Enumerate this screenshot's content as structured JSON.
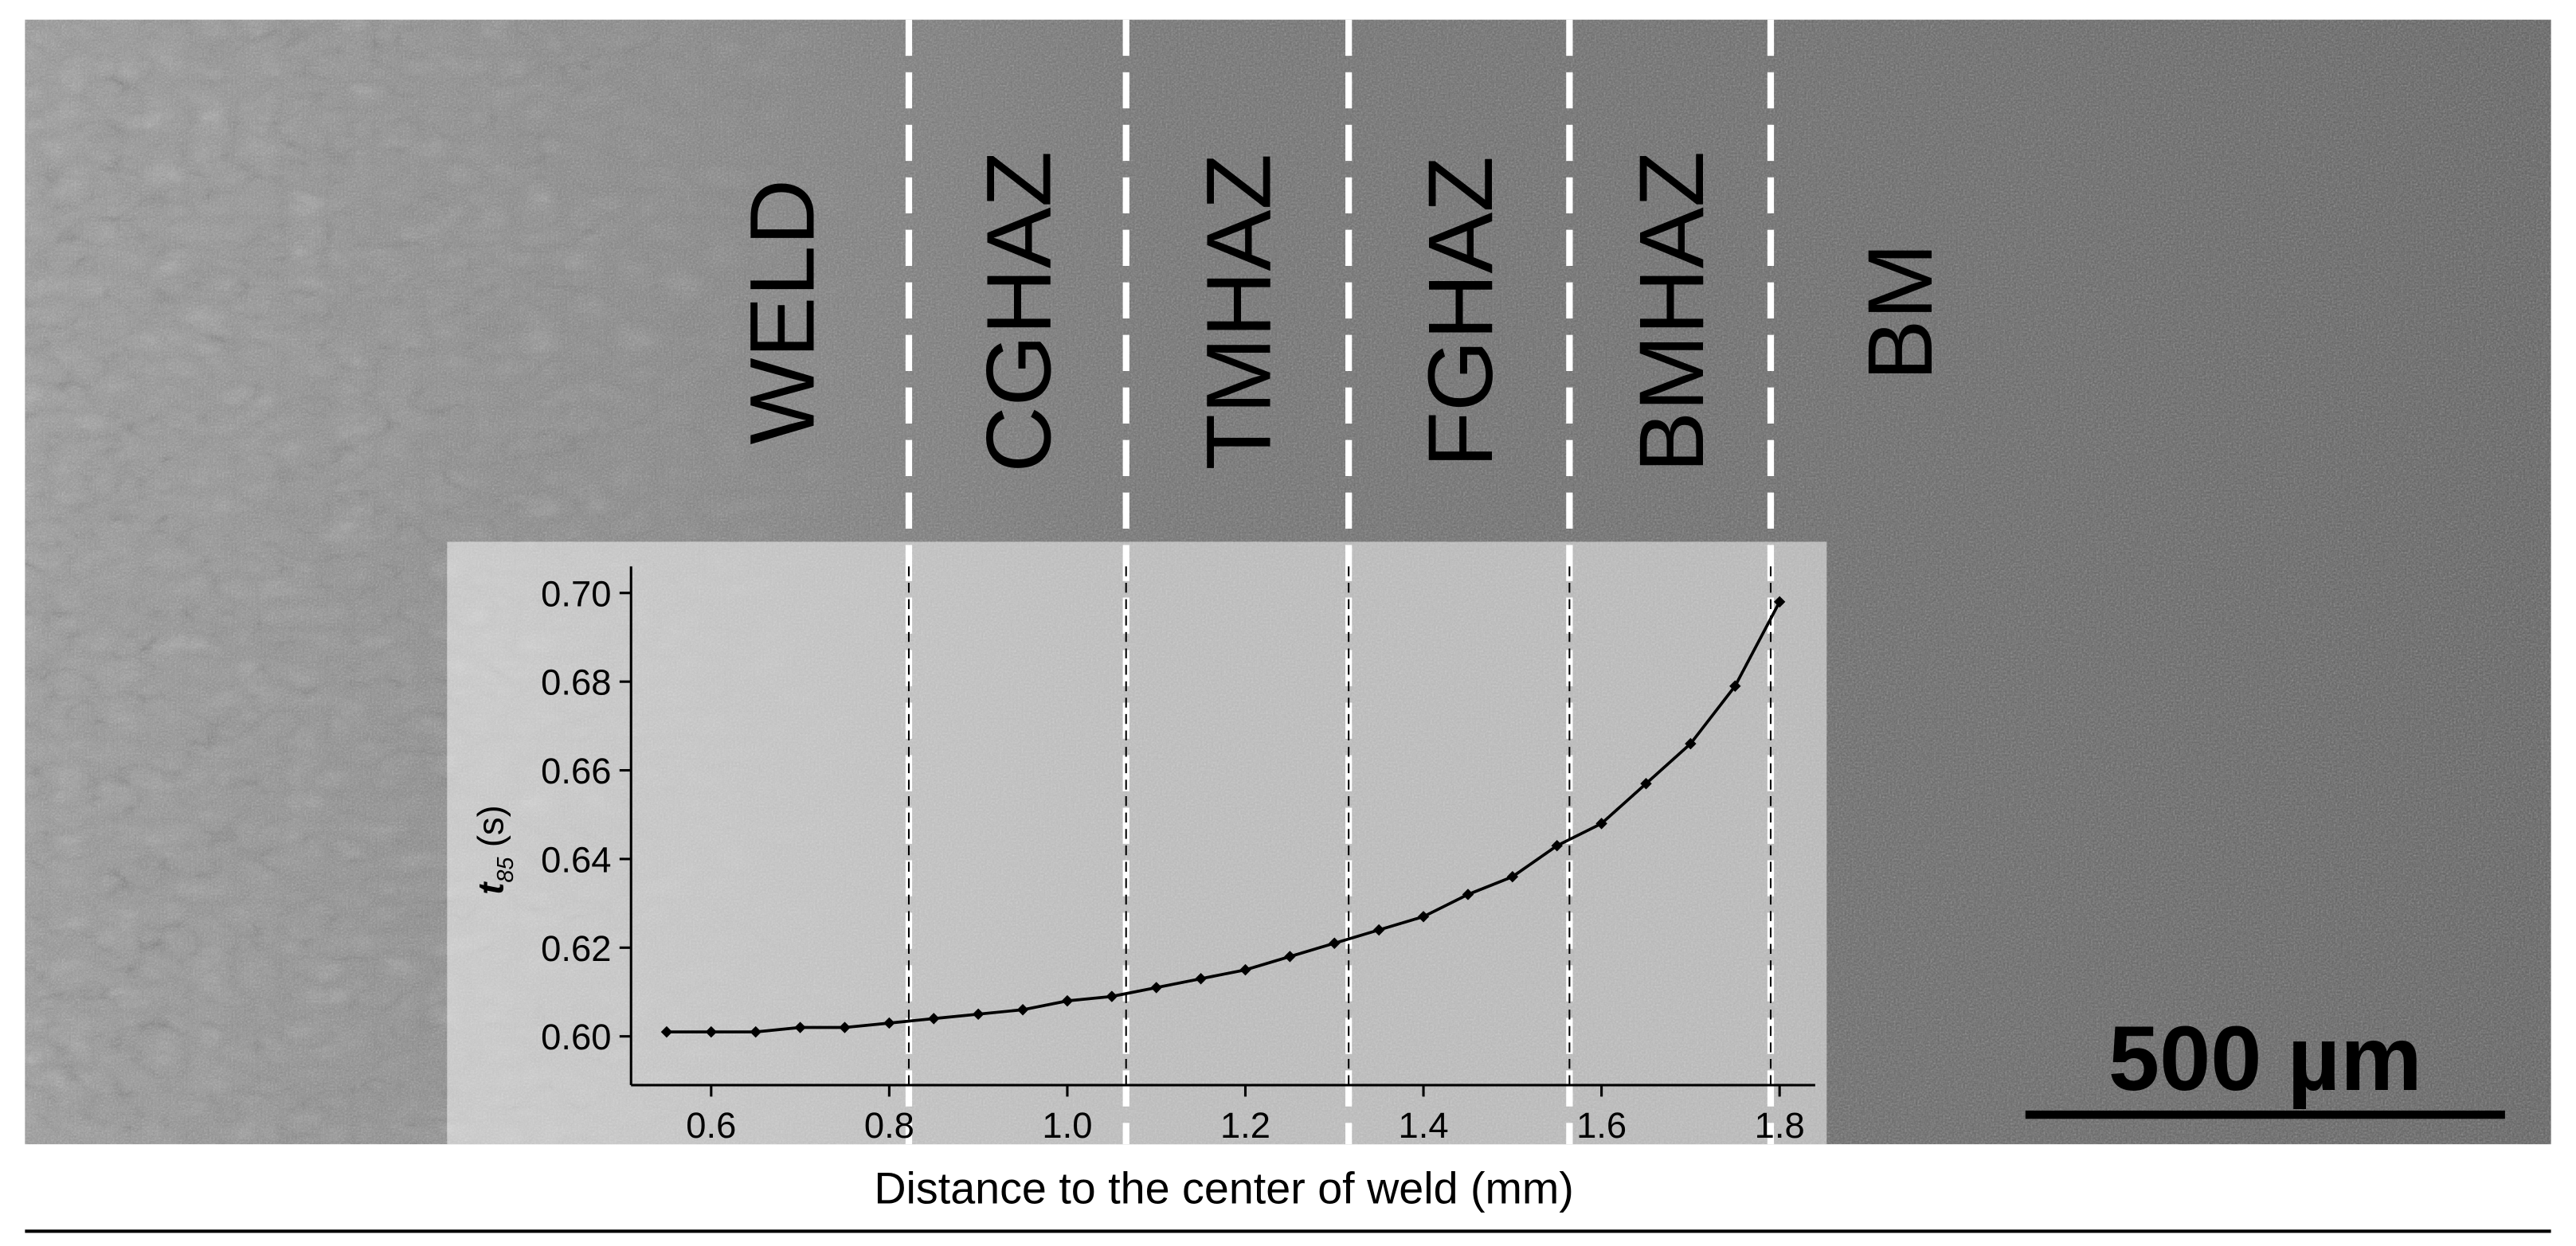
{
  "chart_data": {
    "type": "line",
    "xlabel": "Distance to the center of weld (mm)",
    "ylabel": {
      "symbol": "t",
      "subscript": "85",
      "unit": "(s)"
    },
    "x": [
      0.55,
      0.6,
      0.65,
      0.7,
      0.75,
      0.8,
      0.85,
      0.9,
      0.95,
      1.0,
      1.05,
      1.1,
      1.15,
      1.2,
      1.25,
      1.3,
      1.35,
      1.4,
      1.45,
      1.5,
      1.55,
      1.6,
      1.65,
      1.7,
      1.75,
      1.8
    ],
    "values": [
      0.601,
      0.601,
      0.601,
      0.602,
      0.602,
      0.603,
      0.604,
      0.605,
      0.606,
      0.608,
      0.609,
      0.611,
      0.613,
      0.615,
      0.618,
      0.621,
      0.624,
      0.627,
      0.632,
      0.636,
      0.643,
      0.648,
      0.657,
      0.666,
      0.679,
      0.698
    ],
    "color": "#000000",
    "xlim": [
      0.51,
      1.84
    ],
    "ylim": [
      0.589,
      0.706
    ],
    "xticks": [
      0.6,
      0.8,
      {
        "value": 1.0,
        "label": "1.0"
      },
      1.2,
      1.4,
      1.6,
      1.8
    ],
    "yticks": [
      {
        "value": 0.6,
        "label": "0.60"
      },
      {
        "value": 0.62,
        "label": "0.62"
      },
      {
        "value": 0.64,
        "label": "0.64"
      },
      {
        "value": 0.66,
        "label": "0.66"
      },
      {
        "value": 0.68,
        "label": "0.68"
      },
      {
        "value": 0.7,
        "label": "0.70"
      }
    ],
    "zone_boundaries": [
      0.822,
      1.066,
      1.316,
      1.564,
      1.79
    ],
    "zones": [
      "WELD",
      "CGHAZ",
      "TMHAZ",
      "FGHAZ",
      "BMHAZ",
      "BM"
    ],
    "scale_bar": "500 µm"
  }
}
